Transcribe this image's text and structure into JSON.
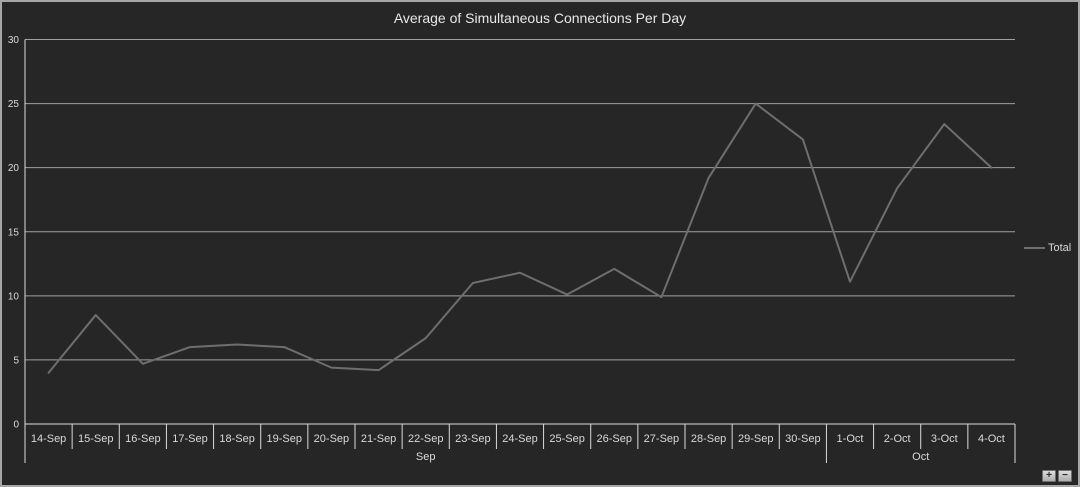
{
  "window": {
    "background": "#262626",
    "border_color": "#a6a6a6"
  },
  "chart": {
    "title": "Average of Simultaneous Connections Per Day"
  },
  "chart_data": {
    "type": "line",
    "title": "Average of Simultaneous Connections Per Day",
    "categories": [
      "14-Sep",
      "15-Sep",
      "16-Sep",
      "17-Sep",
      "18-Sep",
      "19-Sep",
      "20-Sep",
      "21-Sep",
      "22-Sep",
      "23-Sep",
      "24-Sep",
      "25-Sep",
      "26-Sep",
      "27-Sep",
      "28-Sep",
      "29-Sep",
      "30-Sep",
      "1-Oct",
      "2-Oct",
      "3-Oct",
      "4-Oct"
    ],
    "series": [
      {
        "name": "Total",
        "color": "#6e6e6e",
        "values": [
          4,
          8.5,
          4.7,
          6,
          6.2,
          6,
          4.4,
          4.2,
          6.7,
          11,
          11.8,
          10.1,
          12.1,
          9.9,
          19.2,
          25,
          22.2,
          11.1,
          18.4,
          23.4,
          20
        ]
      }
    ],
    "x_groups": [
      {
        "label": "Sep",
        "start": 0,
        "end": 16
      },
      {
        "label": "Oct",
        "start": 17,
        "end": 20
      }
    ],
    "xlabel": "",
    "ylabel": "",
    "ylim": [
      0,
      30
    ],
    "yticks": [
      0,
      5,
      10,
      15,
      20,
      25,
      30
    ],
    "grid": true,
    "legend_position": "right"
  },
  "legend": {
    "label": "Total"
  },
  "field_buttons": {
    "expand_label": "+",
    "collapse_label": "−"
  },
  "colors": {
    "gridline": "#a0a0a0",
    "axis_line": "#dcdcdc",
    "tick_label": "#d9d9d9",
    "title_text": "#e8e8e8",
    "series_line": "#6e6e6e"
  }
}
